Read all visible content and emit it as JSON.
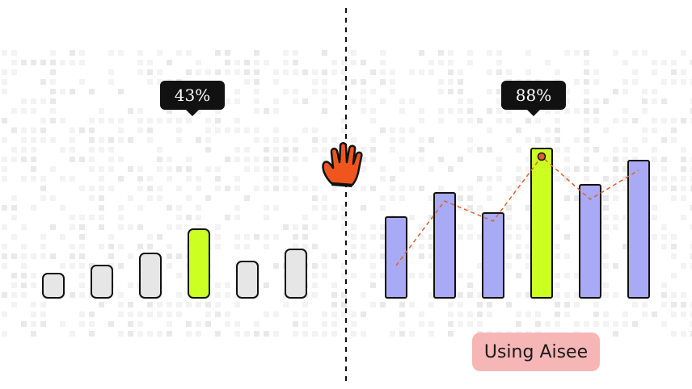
{
  "chart_data": [
    {
      "type": "bar",
      "values": [
        3,
        4,
        5.5,
        8.5,
        4.5,
        6
      ],
      "highlight_index": 3,
      "tooltip": "43%",
      "colors": {
        "bar": "#e6e6e6",
        "highlight": "#ccff22",
        "outline": "#111111"
      }
    },
    {
      "type": "bar",
      "values": [
        10,
        13,
        10.5,
        18.5,
        14,
        17
      ],
      "highlight_index": 3,
      "tooltip": "88%",
      "line_values": [
        4,
        12,
        9.5,
        17.5,
        12.2,
        15.8
      ],
      "colors": {
        "bar": "#a8aaf5",
        "highlight": "#ccff22",
        "outline": "#111111",
        "line": "#e2602a"
      }
    }
  ],
  "label": {
    "text": "Using Aisee",
    "color": "#f7b6b6"
  },
  "divider": {
    "style": "dashed",
    "color": "#111111"
  },
  "icon": {
    "name": "hand-icon",
    "color": "#f0551e"
  }
}
